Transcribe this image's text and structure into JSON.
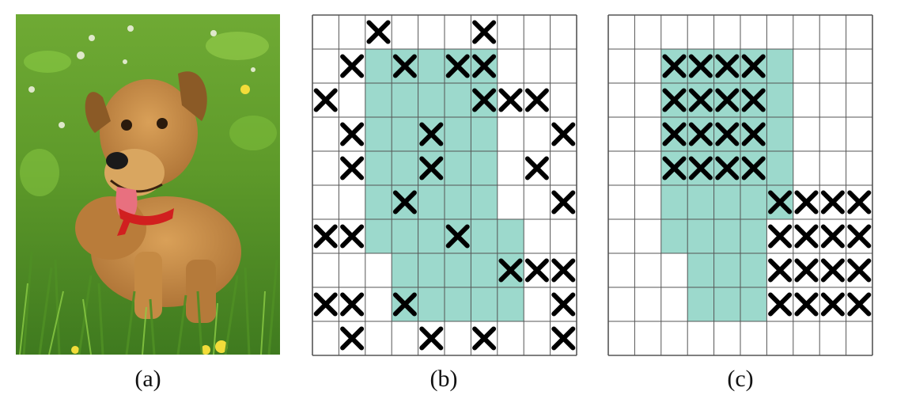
{
  "panels": [
    {
      "id": "a",
      "caption": "(a)"
    },
    {
      "id": "b",
      "caption": "(b)"
    },
    {
      "id": "c",
      "caption": "(c)"
    }
  ],
  "colors": {
    "mask_fill": "#9cd9cc",
    "grid_line": "#555555",
    "x_mark": "#000000",
    "grass_dark": "#3f7a1f",
    "grass_light": "#8ccd45",
    "dog_fur": "#c58a44",
    "dog_shadow": "#8b5a26",
    "tongue": "#e8707f",
    "collar": "#d11f1f"
  },
  "grid_b": {
    "rows": 10,
    "cols": 10,
    "mask": [
      [],
      [
        2,
        3,
        4,
        5,
        6
      ],
      [
        2,
        3,
        4,
        5,
        6
      ],
      [
        2,
        3,
        4,
        5,
        6
      ],
      [
        2,
        3,
        4,
        5,
        6
      ],
      [
        2,
        3,
        4,
        5,
        6
      ],
      [
        2,
        3,
        4,
        5,
        6,
        7
      ],
      [
        3,
        4,
        5,
        6,
        7
      ],
      [
        3,
        4,
        5,
        6,
        7
      ],
      []
    ],
    "marks": [
      [
        0,
        2
      ],
      [
        0,
        6
      ],
      [
        1,
        1
      ],
      [
        1,
        3
      ],
      [
        1,
        5
      ],
      [
        1,
        6
      ],
      [
        2,
        0
      ],
      [
        2,
        6
      ],
      [
        2,
        7
      ],
      [
        2,
        8
      ],
      [
        3,
        1
      ],
      [
        3,
        4
      ],
      [
        3,
        9
      ],
      [
        4,
        1
      ],
      [
        4,
        4
      ],
      [
        4,
        8
      ],
      [
        5,
        3
      ],
      [
        5,
        9
      ],
      [
        6,
        0
      ],
      [
        6,
        1
      ],
      [
        6,
        5
      ],
      [
        7,
        7
      ],
      [
        7,
        8
      ],
      [
        7,
        9
      ],
      [
        8,
        0
      ],
      [
        8,
        1
      ],
      [
        8,
        3
      ],
      [
        8,
        9
      ],
      [
        9,
        1
      ],
      [
        9,
        4
      ],
      [
        9,
        6
      ],
      [
        9,
        9
      ]
    ]
  },
  "grid_c": {
    "rows": 10,
    "cols": 10,
    "mask": [
      [],
      [
        2,
        3,
        4,
        5,
        6
      ],
      [
        2,
        3,
        4,
        5,
        6
      ],
      [
        2,
        3,
        4,
        5,
        6
      ],
      [
        2,
        3,
        4,
        5,
        6
      ],
      [
        2,
        3,
        4,
        5,
        6
      ],
      [
        2,
        3,
        4,
        5
      ],
      [
        3,
        4,
        5
      ],
      [
        3,
        4,
        5
      ],
      []
    ],
    "marks": [
      [
        1,
        2
      ],
      [
        1,
        3
      ],
      [
        1,
        4
      ],
      [
        1,
        5
      ],
      [
        2,
        2
      ],
      [
        2,
        3
      ],
      [
        2,
        4
      ],
      [
        2,
        5
      ],
      [
        3,
        2
      ],
      [
        3,
        3
      ],
      [
        3,
        4
      ],
      [
        3,
        5
      ],
      [
        4,
        2
      ],
      [
        4,
        3
      ],
      [
        4,
        4
      ],
      [
        4,
        5
      ],
      [
        5,
        6
      ],
      [
        5,
        7
      ],
      [
        5,
        8
      ],
      [
        5,
        9
      ],
      [
        6,
        6
      ],
      [
        6,
        7
      ],
      [
        6,
        8
      ],
      [
        6,
        9
      ],
      [
        7,
        6
      ],
      [
        7,
        7
      ],
      [
        7,
        8
      ],
      [
        7,
        9
      ],
      [
        8,
        6
      ],
      [
        8,
        7
      ],
      [
        8,
        8
      ],
      [
        8,
        9
      ]
    ]
  }
}
